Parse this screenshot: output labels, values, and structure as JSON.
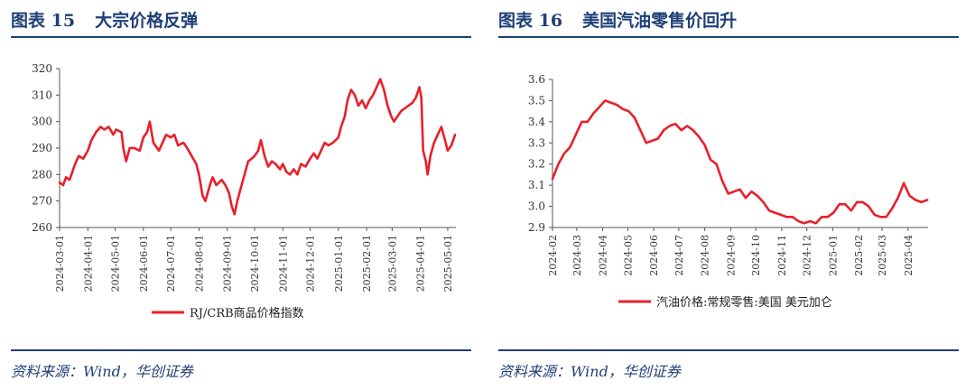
{
  "panels": [
    {
      "figure_label": "图表 15",
      "title": "大宗价格反弹",
      "source": "资料来源：Wind，华创证券"
    },
    {
      "figure_label": "图表 16",
      "title": "美国汽油零售价回升",
      "source": "资料来源：Wind，华创证券"
    }
  ],
  "chart_data": [
    {
      "type": "line",
      "title": "",
      "xlabel": "",
      "ylabel": "",
      "ylim": [
        260,
        320
      ],
      "yticks": [
        260,
        270,
        280,
        290,
        300,
        310,
        320
      ],
      "xlim": [
        "2024-03-01",
        "2025-05-10"
      ],
      "xticks": [
        "2024-03-01",
        "2024-04-01",
        "2024-05-01",
        "2024-06-01",
        "2024-07-01",
        "2024-08-01",
        "2024-09-01",
        "2024-10-01",
        "2024-11-01",
        "2024-12-01",
        "2025-01-01",
        "2025-02-01",
        "2025-03-01",
        "2025-04-01",
        "2025-05-01"
      ],
      "grid": false,
      "legend_position": "bottom",
      "color": "#e8202a",
      "series": [
        {
          "name": "RJ/CRB商品价格指数",
          "points": [
            [
              "2024-03-01",
              277
            ],
            [
              "2024-03-05",
              276
            ],
            [
              "2024-03-08",
              279
            ],
            [
              "2024-03-12",
              278
            ],
            [
              "2024-03-18",
              284
            ],
            [
              "2024-03-22",
              287
            ],
            [
              "2024-03-27",
              286
            ],
            [
              "2024-04-01",
              289
            ],
            [
              "2024-04-05",
              293
            ],
            [
              "2024-04-10",
              296
            ],
            [
              "2024-04-15",
              298
            ],
            [
              "2024-04-19",
              297
            ],
            [
              "2024-04-24",
              298
            ],
            [
              "2024-04-29",
              295
            ],
            [
              "2024-05-02",
              297
            ],
            [
              "2024-05-08",
              296
            ],
            [
              "2024-05-10",
              290
            ],
            [
              "2024-05-13",
              285
            ],
            [
              "2024-05-17",
              290
            ],
            [
              "2024-05-22",
              290
            ],
            [
              "2024-05-28",
              289
            ],
            [
              "2024-06-01",
              294
            ],
            [
              "2024-06-05",
              296
            ],
            [
              "2024-06-08",
              300
            ],
            [
              "2024-06-12",
              292
            ],
            [
              "2024-06-18",
              289
            ],
            [
              "2024-06-22",
              292
            ],
            [
              "2024-06-26",
              295
            ],
            [
              "2024-07-01",
              294
            ],
            [
              "2024-07-05",
              295
            ],
            [
              "2024-07-09",
              291
            ],
            [
              "2024-07-15",
              292
            ],
            [
              "2024-07-19",
              290
            ],
            [
              "2024-07-24",
              287
            ],
            [
              "2024-07-29",
              284
            ],
            [
              "2024-08-01",
              280
            ],
            [
              "2024-08-05",
              272
            ],
            [
              "2024-08-08",
              270
            ],
            [
              "2024-08-13",
              276
            ],
            [
              "2024-08-16",
              279
            ],
            [
              "2024-08-20",
              276
            ],
            [
              "2024-08-26",
              278
            ],
            [
              "2024-08-30",
              276
            ],
            [
              "2024-09-03",
              273
            ],
            [
              "2024-09-06",
              268
            ],
            [
              "2024-09-09",
              265
            ],
            [
              "2024-09-12",
              270
            ],
            [
              "2024-09-16",
              275
            ],
            [
              "2024-09-20",
              280
            ],
            [
              "2024-09-24",
              285
            ],
            [
              "2024-09-28",
              286
            ],
            [
              "2024-10-01",
              287
            ],
            [
              "2024-10-05",
              289
            ],
            [
              "2024-10-08",
              293
            ],
            [
              "2024-10-12",
              287
            ],
            [
              "2024-10-16",
              283
            ],
            [
              "2024-10-20",
              285
            ],
            [
              "2024-10-24",
              284
            ],
            [
              "2024-10-29",
              282
            ],
            [
              "2024-11-01",
              284
            ],
            [
              "2024-11-05",
              281
            ],
            [
              "2024-11-09",
              280
            ],
            [
              "2024-11-13",
              282
            ],
            [
              "2024-11-17",
              280
            ],
            [
              "2024-11-21",
              284
            ],
            [
              "2024-11-26",
              283
            ],
            [
              "2024-12-01",
              286
            ],
            [
              "2024-12-05",
              288
            ],
            [
              "2024-12-09",
              286
            ],
            [
              "2024-12-13",
              289
            ],
            [
              "2024-12-17",
              292
            ],
            [
              "2024-12-21",
              291
            ],
            [
              "2024-12-26",
              292
            ],
            [
              "2025-01-01",
              294
            ],
            [
              "2025-01-04",
              298
            ],
            [
              "2025-01-08",
              302
            ],
            [
              "2025-01-11",
              308
            ],
            [
              "2025-01-15",
              312
            ],
            [
              "2025-01-19",
              310
            ],
            [
              "2025-01-23",
              306
            ],
            [
              "2025-01-27",
              308
            ],
            [
              "2025-01-31",
              305
            ],
            [
              "2025-02-04",
              308
            ],
            [
              "2025-02-08",
              310
            ],
            [
              "2025-02-12",
              313
            ],
            [
              "2025-02-16",
              316
            ],
            [
              "2025-02-20",
              312
            ],
            [
              "2025-02-24",
              306
            ],
            [
              "2025-02-28",
              302
            ],
            [
              "2025-03-03",
              300
            ],
            [
              "2025-03-07",
              302
            ],
            [
              "2025-03-11",
              304
            ],
            [
              "2025-03-15",
              305
            ],
            [
              "2025-03-19",
              306
            ],
            [
              "2025-03-23",
              307
            ],
            [
              "2025-03-27",
              309
            ],
            [
              "2025-03-31",
              313
            ],
            [
              "2025-04-02",
              309
            ],
            [
              "2025-04-04",
              289
            ],
            [
              "2025-04-07",
              285
            ],
            [
              "2025-04-09",
              280
            ],
            [
              "2025-04-12",
              287
            ],
            [
              "2025-04-16",
              292
            ],
            [
              "2025-04-20",
              295
            ],
            [
              "2025-04-24",
              298
            ],
            [
              "2025-04-28",
              293
            ],
            [
              "2025-05-01",
              289
            ],
            [
              "2025-05-05",
              291
            ],
            [
              "2025-05-09",
              295
            ]
          ]
        }
      ]
    },
    {
      "type": "line",
      "title": "",
      "xlabel": "",
      "ylabel": "",
      "ylim": [
        2.9,
        3.6
      ],
      "yticks": [
        "2.9",
        "3.0",
        "3.1",
        "3.2",
        "3.3",
        "3.4",
        "3.5",
        "3.6"
      ],
      "xlim": [
        "2024-02-01",
        "2025-04-25"
      ],
      "xticks": [
        "2024-02",
        "2024-03",
        "2024-04",
        "2024-05",
        "2024-06",
        "2024-07",
        "2024-08",
        "2024-09",
        "2024-10",
        "2024-11",
        "2024-12",
        "2025-01",
        "2025-02",
        "2025-03",
        "2025-04"
      ],
      "grid": false,
      "legend_position": "bottom",
      "color": "#e8202a",
      "series": [
        {
          "name": "汽油价格:常规零售:美国 美元加仑",
          "points": [
            [
              "2024-02-01",
              3.13
            ],
            [
              "2024-02-08",
              3.2
            ],
            [
              "2024-02-15",
              3.25
            ],
            [
              "2024-02-22",
              3.28
            ],
            [
              "2024-02-29",
              3.34
            ],
            [
              "2024-03-07",
              3.4
            ],
            [
              "2024-03-14",
              3.4
            ],
            [
              "2024-03-21",
              3.44
            ],
            [
              "2024-03-28",
              3.47
            ],
            [
              "2024-04-04",
              3.5
            ],
            [
              "2024-04-11",
              3.49
            ],
            [
              "2024-04-18",
              3.48
            ],
            [
              "2024-04-25",
              3.46
            ],
            [
              "2024-05-02",
              3.45
            ],
            [
              "2024-05-09",
              3.42
            ],
            [
              "2024-05-16",
              3.36
            ],
            [
              "2024-05-23",
              3.3
            ],
            [
              "2024-05-30",
              3.31
            ],
            [
              "2024-06-06",
              3.32
            ],
            [
              "2024-06-13",
              3.36
            ],
            [
              "2024-06-20",
              3.38
            ],
            [
              "2024-06-27",
              3.39
            ],
            [
              "2024-07-04",
              3.36
            ],
            [
              "2024-07-11",
              3.38
            ],
            [
              "2024-07-18",
              3.36
            ],
            [
              "2024-07-25",
              3.33
            ],
            [
              "2024-08-01",
              3.29
            ],
            [
              "2024-08-08",
              3.22
            ],
            [
              "2024-08-15",
              3.2
            ],
            [
              "2024-08-22",
              3.12
            ],
            [
              "2024-08-29",
              3.06
            ],
            [
              "2024-09-05",
              3.07
            ],
            [
              "2024-09-12",
              3.08
            ],
            [
              "2024-09-19",
              3.04
            ],
            [
              "2024-09-26",
              3.07
            ],
            [
              "2024-10-03",
              3.05
            ],
            [
              "2024-10-10",
              3.02
            ],
            [
              "2024-10-17",
              2.98
            ],
            [
              "2024-10-24",
              2.97
            ],
            [
              "2024-10-31",
              2.96
            ],
            [
              "2024-11-07",
              2.95
            ],
            [
              "2024-11-14",
              2.95
            ],
            [
              "2024-11-21",
              2.93
            ],
            [
              "2024-11-28",
              2.92
            ],
            [
              "2024-12-05",
              2.93
            ],
            [
              "2024-12-12",
              2.92
            ],
            [
              "2024-12-19",
              2.95
            ],
            [
              "2024-12-26",
              2.95
            ],
            [
              "2025-01-02",
              2.97
            ],
            [
              "2025-01-09",
              3.01
            ],
            [
              "2025-01-16",
              3.01
            ],
            [
              "2025-01-23",
              2.98
            ],
            [
              "2025-01-30",
              3.02
            ],
            [
              "2025-02-06",
              3.02
            ],
            [
              "2025-02-13",
              3.0
            ],
            [
              "2025-02-20",
              2.96
            ],
            [
              "2025-02-27",
              2.95
            ],
            [
              "2025-03-06",
              2.95
            ],
            [
              "2025-03-13",
              2.99
            ],
            [
              "2025-03-20",
              3.04
            ],
            [
              "2025-03-24",
              3.08
            ],
            [
              "2025-03-27",
              3.11
            ],
            [
              "2025-04-03",
              3.05
            ],
            [
              "2025-04-10",
              3.03
            ],
            [
              "2025-04-17",
              3.02
            ],
            [
              "2025-04-24",
              3.03
            ]
          ]
        }
      ]
    }
  ]
}
